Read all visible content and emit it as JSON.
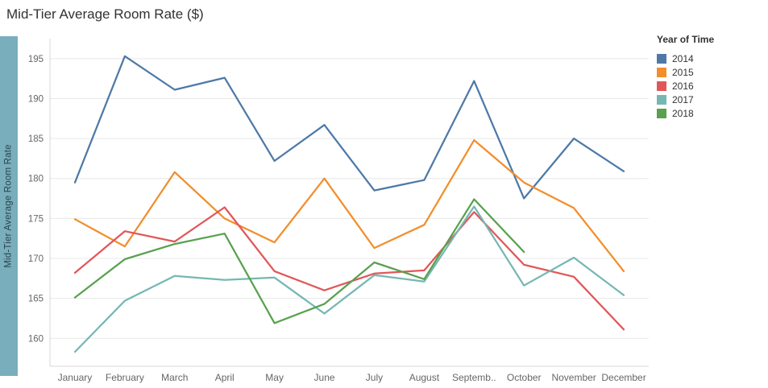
{
  "title": "Mid-Tier Average Room Rate ($)",
  "y_axis_label": "Mid-Tier Average Room Rate",
  "legend": {
    "title": "Year of Time",
    "items": [
      {
        "label": "2014",
        "color": "#4e79a7"
      },
      {
        "label": "2015",
        "color": "#f28e2b"
      },
      {
        "label": "2016",
        "color": "#e15759"
      },
      {
        "label": "2017",
        "color": "#76b7b2"
      },
      {
        "label": "2018",
        "color": "#59a14f"
      }
    ]
  },
  "chart_data": {
    "type": "line",
    "title": "Mid-Tier Average Room Rate ($)",
    "xlabel": "",
    "ylabel": "Mid-Tier Average Room Rate",
    "categories": [
      "January",
      "February",
      "March",
      "April",
      "May",
      "June",
      "July",
      "August",
      "Septemb..",
      "October",
      "November",
      "December"
    ],
    "yticks": [
      160,
      165,
      170,
      175,
      180,
      185,
      190,
      195
    ],
    "ylim": [
      156.5,
      197.5
    ],
    "grid": true,
    "legend_position": "right",
    "series": [
      {
        "name": "2014",
        "color": "#4e79a7",
        "values": [
          179.5,
          195.3,
          191.1,
          192.6,
          182.2,
          186.7,
          178.5,
          179.8,
          192.2,
          177.5,
          185.0,
          180.9
        ]
      },
      {
        "name": "2015",
        "color": "#f28e2b",
        "values": [
          174.9,
          171.5,
          180.8,
          175.0,
          172.0,
          180.0,
          171.3,
          174.2,
          184.8,
          179.5,
          176.3,
          168.4
        ]
      },
      {
        "name": "2016",
        "color": "#e15759",
        "values": [
          168.2,
          173.4,
          172.1,
          176.4,
          168.4,
          166.0,
          168.1,
          168.5,
          175.8,
          169.2,
          167.7,
          161.1
        ]
      },
      {
        "name": "2017",
        "color": "#76b7b2",
        "values": [
          158.3,
          164.7,
          167.8,
          167.3,
          167.6,
          163.1,
          167.9,
          167.1,
          176.5,
          166.6,
          170.1,
          165.4
        ]
      },
      {
        "name": "2018",
        "color": "#59a14f",
        "values": [
          165.1,
          169.9,
          171.8,
          173.1,
          161.9,
          164.3,
          169.5,
          167.4,
          177.4,
          170.8,
          null,
          null
        ]
      }
    ]
  },
  "colors": {
    "axis_band": "#79aebc",
    "grid": "#e8e8e8",
    "axis_rule": "#d7d7d7",
    "tick_text": "#666666"
  }
}
